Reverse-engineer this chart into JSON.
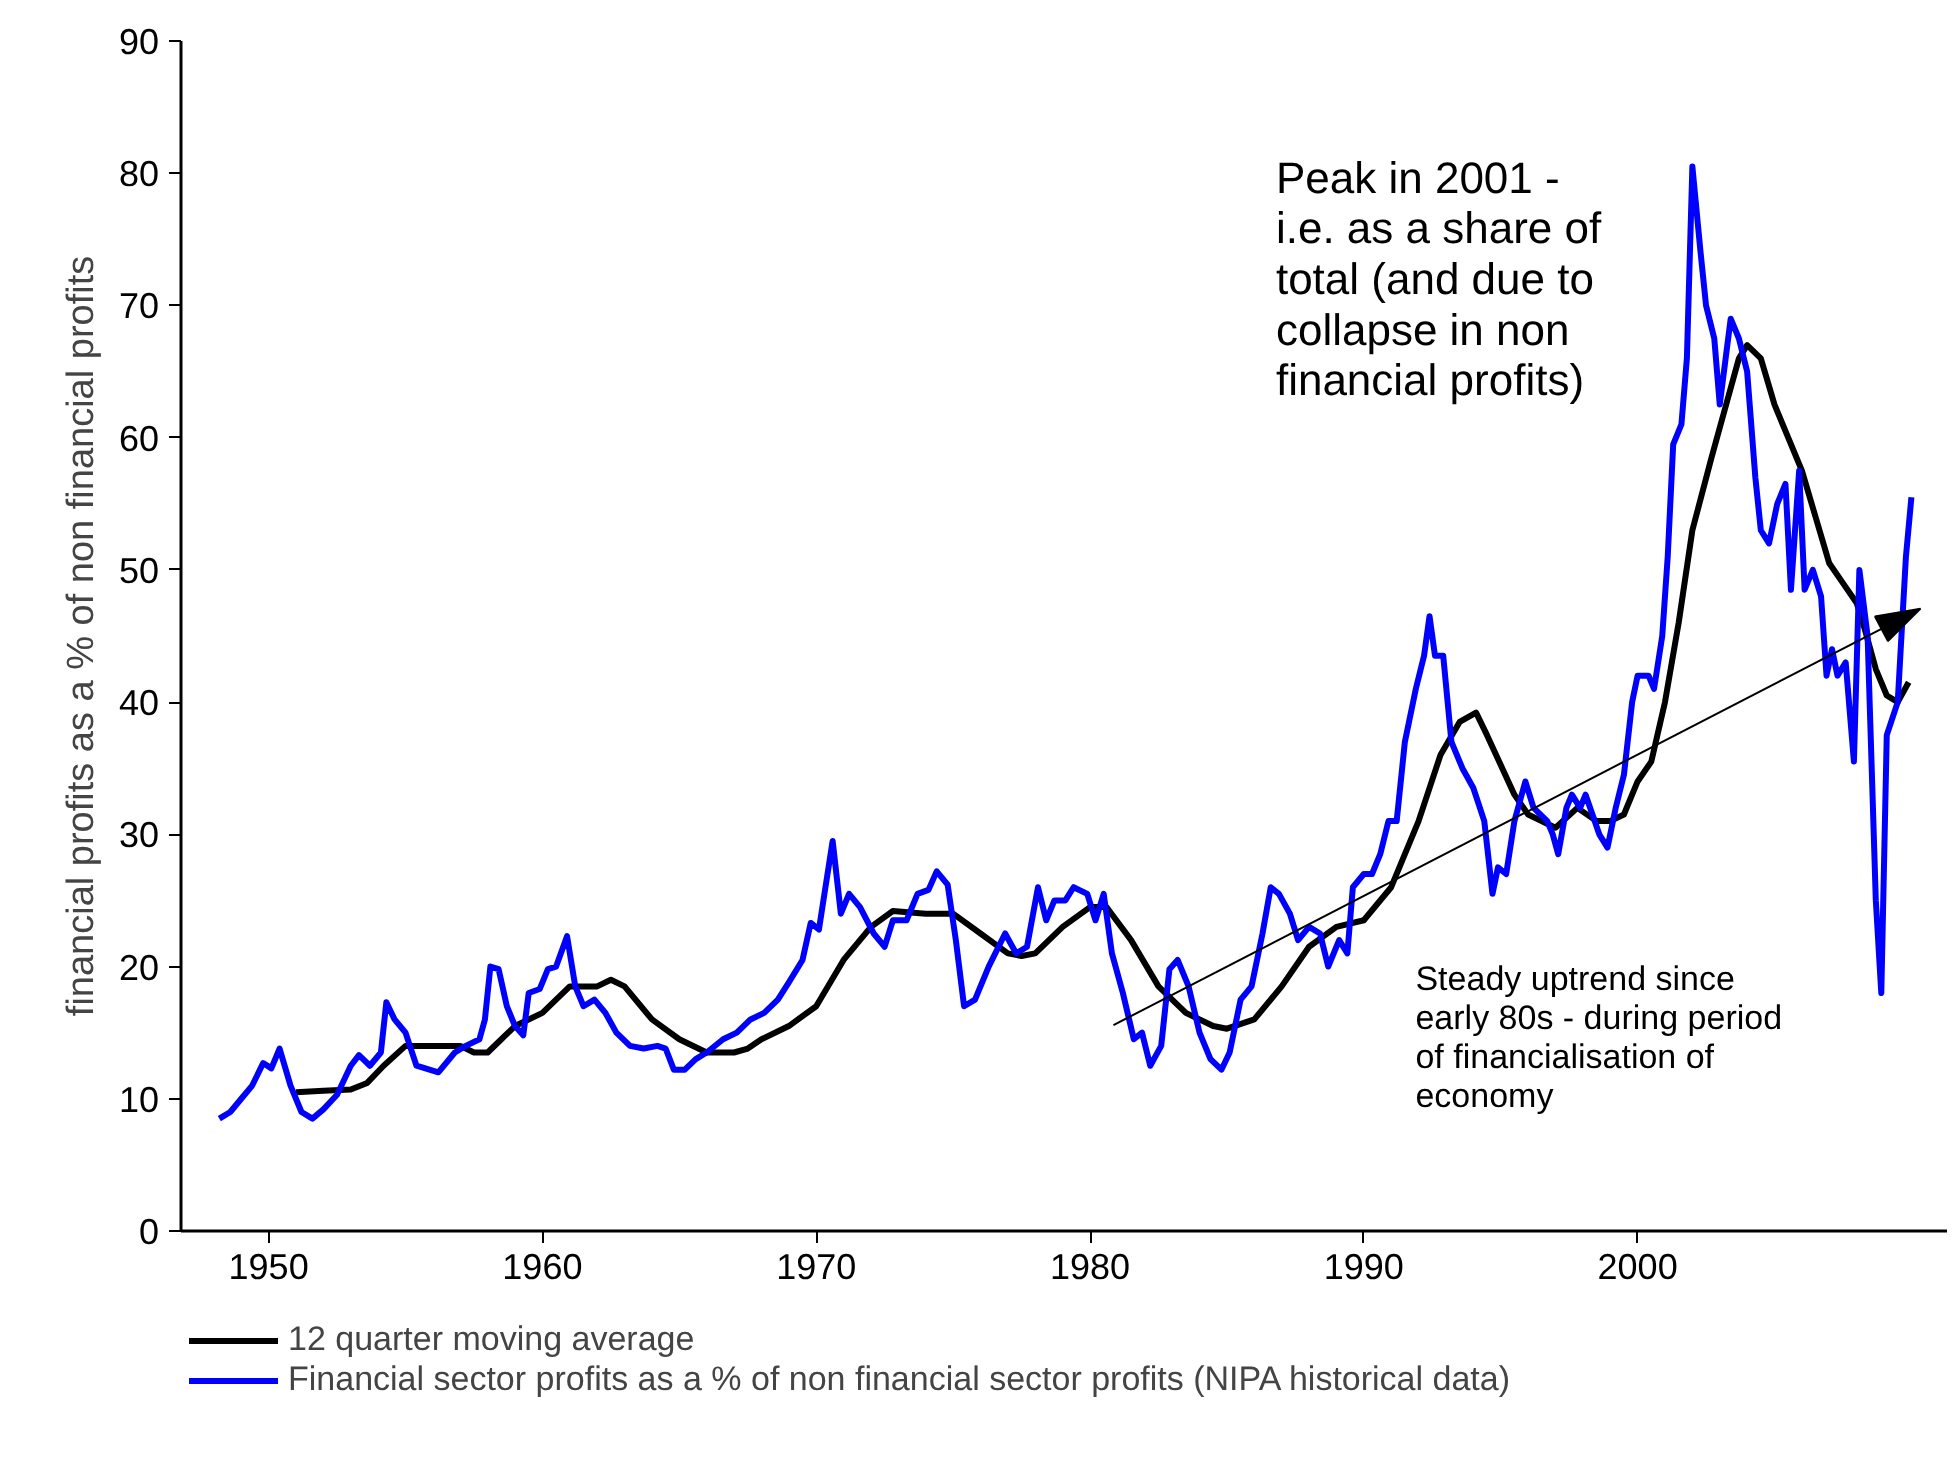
{
  "chart_data": {
    "type": "line",
    "ylabel": "financial profits as a % of non financial profits",
    "xlim": [
      1946.8,
      2011.3
    ],
    "xticks": [
      1950,
      1960,
      1970,
      1980,
      1990,
      2000
    ],
    "ylim": [
      0,
      90
    ],
    "yticks": [
      0,
      10,
      20,
      30,
      40,
      50,
      60,
      70,
      80,
      90
    ],
    "grid": false,
    "legend": "bottom",
    "marker": "none",
    "line_style": "solid",
    "annotations": [
      "Peak in 2001 - i.e. as a share of total (and due to collapse in non financial profits)",
      "Steady uptrend since early 80s - during period of financialisation of economy"
    ],
    "series": [
      {
        "name": "12 quarter moving average",
        "color": "#000000",
        "x": [
          1951,
          1952,
          1953,
          1953.6,
          1954.2,
          1955,
          1956,
          1957,
          1957.5,
          1958,
          1958.5,
          1959,
          1960,
          1961,
          1962,
          1962.5,
          1963,
          1964,
          1965,
          1966,
          1967,
          1967.5,
          1968,
          1969,
          1970,
          1971,
          1972,
          1972.8,
          1974,
          1975,
          1976,
          1977,
          1977.5,
          1978,
          1979,
          1980,
          1980.6,
          1981.5,
          1982.5,
          1983.5,
          1984.5,
          1985,
          1986,
          1987,
          1988,
          1989,
          1990,
          1991,
          1992,
          1992.8,
          1993.5,
          1994.1,
          1994.5,
          1995.5,
          1996,
          1997,
          1997.8,
          1998.5,
          1999,
          1999.5,
          2000,
          2000.5,
          2001,
          2001.5,
          2002,
          2002.7,
          2003.3,
          2003.7,
          2004,
          2004.5,
          2005,
          2005.5,
          2006,
          2006.5,
          2007,
          2007.5,
          2008,
          2008.3,
          2008.7,
          2009.1,
          2009.5,
          2009.9
        ],
        "values": [
          10.5,
          10.6,
          10.7,
          11.2,
          12.5,
          14,
          14,
          14,
          13.5,
          13.5,
          14.5,
          15.5,
          16.5,
          18.5,
          18.5,
          19,
          18.5,
          16,
          14.5,
          13.5,
          13.5,
          13.8,
          14.5,
          15.5,
          17,
          20.5,
          23,
          24.2,
          24,
          24,
          22.5,
          21,
          20.8,
          21,
          23,
          24.5,
          24.5,
          22,
          18.5,
          16.5,
          15.5,
          15.3,
          16,
          18.5,
          21.5,
          23,
          23.5,
          26,
          31,
          36,
          38.5,
          39.2,
          37.5,
          33,
          31.5,
          30.5,
          32,
          31,
          31,
          31.5,
          34,
          35.5,
          40,
          46,
          53,
          58.5,
          63,
          66,
          67,
          66,
          62.5,
          60,
          57.5,
          54,
          50.5,
          49,
          47.5,
          45.5,
          42.5,
          40.5,
          40,
          41.5
        ]
      },
      {
        "name": "Financial sector profits as a % of non financial sector profits (NIPA historical data)",
        "color": "#0000ff",
        "x": [
          1948.2,
          1948.6,
          1949,
          1949.4,
          1949.8,
          1950.1,
          1950.4,
          1950.8,
          1951.2,
          1951.6,
          1952,
          1952.5,
          1953,
          1953.3,
          1953.7,
          1954.1,
          1954.3,
          1954.6,
          1955,
          1955.4,
          1956.2,
          1956.8,
          1957.2,
          1957.7,
          1957.9,
          1958.1,
          1958.4,
          1958.7,
          1959,
          1959.3,
          1959.5,
          1959.9,
          1960.2,
          1960.5,
          1960.9,
          1961.2,
          1961.5,
          1961.9,
          1962.3,
          1962.7,
          1963.2,
          1963.7,
          1964.2,
          1964.5,
          1964.8,
          1965.2,
          1965.6,
          1966,
          1966.6,
          1967.1,
          1967.6,
          1968.1,
          1968.6,
          1969,
          1969.5,
          1969.8,
          1970.1,
          1970.3,
          1970.6,
          1970.9,
          1971.2,
          1971.6,
          1972.1,
          1972.5,
          1972.8,
          1973.3,
          1973.7,
          1974.1,
          1974.4,
          1974.8,
          1975.1,
          1975.4,
          1975.8,
          1976.3,
          1976.9,
          1977.3,
          1977.7,
          1978.1,
          1978.4,
          1978.7,
          1979.1,
          1979.4,
          1979.9,
          1980.2,
          1980.5,
          1980.8,
          1981.2,
          1981.6,
          1981.9,
          1982.2,
          1982.6,
          1982.9,
          1983.2,
          1983.6,
          1984,
          1984.4,
          1984.8,
          1985.1,
          1985.5,
          1985.9,
          1986.3,
          1986.6,
          1986.9,
          1987.3,
          1987.6,
          1988,
          1988.4,
          1988.7,
          1989.1,
          1989.4,
          1989.6,
          1990,
          1990.3,
          1990.6,
          1990.9,
          1991.2,
          1991.5,
          1991.9,
          1992.2,
          1992.4,
          1992.6,
          1992.9,
          1993.2,
          1993.6,
          1994,
          1994.4,
          1994.7,
          1994.9,
          1995.2,
          1995.5,
          1995.9,
          1996.2,
          1996.7,
          1996.9,
          1997.1,
          1997.4,
          1997.6,
          1997.9,
          1998.1,
          1998.6,
          1998.9,
          1999.2,
          1999.5,
          1999.8,
          2000,
          2000.4,
          2000.6,
          2000.9,
          2001.1,
          2001.3,
          2001.6,
          2001.8,
          2002,
          2002.3,
          2002.5,
          2002.8,
          2003,
          2003.4,
          2003.7,
          2004,
          2004.3,
          2004.5,
          2004.8,
          2005.1,
          2005.4,
          2005.6,
          2005.9,
          2006.1,
          2006.4,
          2006.7,
          2006.9,
          2007.1,
          2007.3,
          2007.6,
          2007.9,
          2008.1,
          2008.4,
          2008.7,
          2008.9,
          2009.1,
          2009.5,
          2009.8,
          2010
        ],
        "values": [
          8.5,
          9,
          10,
          11,
          12.7,
          12.3,
          13.8,
          11,
          9,
          8.5,
          9.2,
          10.3,
          12.5,
          13.3,
          12.5,
          13.5,
          17.3,
          16,
          15,
          12.5,
          12,
          13.5,
          14,
          14.5,
          16,
          20,
          19.8,
          17,
          15.5,
          14.8,
          18,
          18.3,
          19.8,
          20,
          22.3,
          18.5,
          17,
          17.5,
          16.5,
          15,
          14,
          13.8,
          14,
          13.8,
          12.2,
          12.2,
          13,
          13.5,
          14.5,
          15,
          16,
          16.5,
          17.5,
          18.8,
          20.5,
          23.3,
          22.8,
          25.5,
          29.5,
          24,
          25.5,
          24.5,
          22.5,
          21.5,
          23.5,
          23.5,
          25.5,
          25.8,
          27.2,
          26.2,
          22,
          17,
          17.5,
          20,
          22.5,
          21,
          21.5,
          26,
          23.5,
          25,
          25,
          26,
          25.5,
          23.5,
          25.5,
          21,
          18,
          14.5,
          15,
          12.5,
          14,
          19.8,
          20.5,
          18.5,
          15,
          13,
          12.2,
          13.5,
          17.5,
          18.5,
          22.5,
          26,
          25.5,
          24,
          22,
          23,
          22.5,
          20,
          22,
          21,
          26,
          27,
          27,
          28.5,
          31,
          31,
          37,
          41,
          43.5,
          46.5,
          43.5,
          43.5,
          37,
          35,
          33.5,
          31,
          25.5,
          27.5,
          27,
          31,
          34,
          32,
          31,
          30,
          28.5,
          32,
          33,
          32,
          33,
          30,
          29,
          32,
          34.5,
          40,
          42,
          42,
          41,
          45,
          51,
          59.5,
          61,
          66,
          80.5,
          74,
          70,
          67.5,
          62.5,
          69,
          67.5,
          65,
          57,
          53,
          52,
          55,
          56.5,
          48.5,
          57.5,
          48.5,
          50,
          48,
          42,
          44,
          42,
          43,
          35.5,
          50,
          45,
          25,
          18,
          37.5,
          40,
          51,
          55.5
        ]
      }
    ]
  }
}
